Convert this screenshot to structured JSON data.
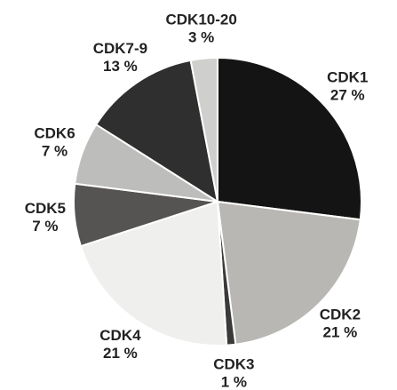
{
  "chart_data": {
    "type": "pie",
    "categories": [
      "CDK1",
      "CDK2",
      "CDK3",
      "CDK4",
      "CDK5",
      "CDK6",
      "CDK7-9",
      "CDK10-20"
    ],
    "values": [
      27,
      21,
      1,
      21,
      7,
      7,
      13,
      3
    ],
    "value_labels": [
      "27 %",
      "21 %",
      "1 %",
      "21 %",
      "7 %",
      "7 %",
      "13 %",
      "3 %"
    ],
    "colors": [
      "#141414",
      "#b9b7b4",
      "#3a3a3a",
      "#efefed",
      "#555452",
      "#bdbdbb",
      "#2f2f2f",
      "#cfcfcd"
    ]
  }
}
